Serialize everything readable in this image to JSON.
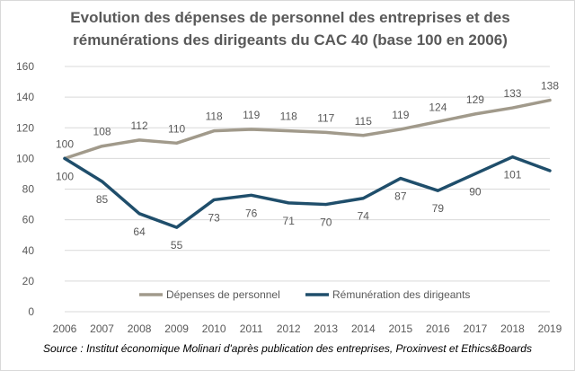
{
  "chart_data": {
    "type": "line",
    "title": [
      "Evolution des dépenses de personnel des entreprises et des",
      "rémunérations des dirigeants du CAC 40 (base 100 en 2006)"
    ],
    "xlabel": "",
    "ylabel": "",
    "ylim": [
      0,
      160
    ],
    "yticks": [
      "0",
      "20",
      "40",
      "60",
      "80",
      "100",
      "120",
      "140",
      "160"
    ],
    "categories": [
      "2006",
      "2007",
      "2008",
      "2009",
      "2010",
      "2011",
      "2012",
      "2013",
      "2014",
      "2015",
      "2016",
      "2017",
      "2018",
      "2019"
    ],
    "series": [
      {
        "name": "Dépenses de personnel",
        "color": "#a19a8b",
        "values": [
          100,
          108,
          112,
          110,
          118,
          119,
          118,
          117,
          115,
          119,
          124,
          129,
          133,
          138
        ],
        "labels": [
          "100",
          "108",
          "112",
          "110",
          "118",
          "119",
          "118",
          "117",
          "115",
          "119",
          "124",
          "129",
          "133",
          "138"
        ],
        "label_position": "above"
      },
      {
        "name": "Rémunération des dirigeants",
        "color": "#1f4e6b",
        "values": [
          100,
          85,
          64,
          55,
          73,
          76,
          71,
          70,
          74,
          87,
          79,
          90,
          101,
          92
        ],
        "labels": [
          "100",
          "85",
          "64",
          "55",
          "73",
          "76",
          "71",
          "70",
          "74",
          "87",
          "79",
          "90",
          "101",
          ""
        ],
        "label_position": "below"
      }
    ],
    "grid": true,
    "legend": "bottom",
    "source": "Source : Institut économique Molinari d'après publication des entreprises, Proxinvest et Ethics&Boards"
  }
}
